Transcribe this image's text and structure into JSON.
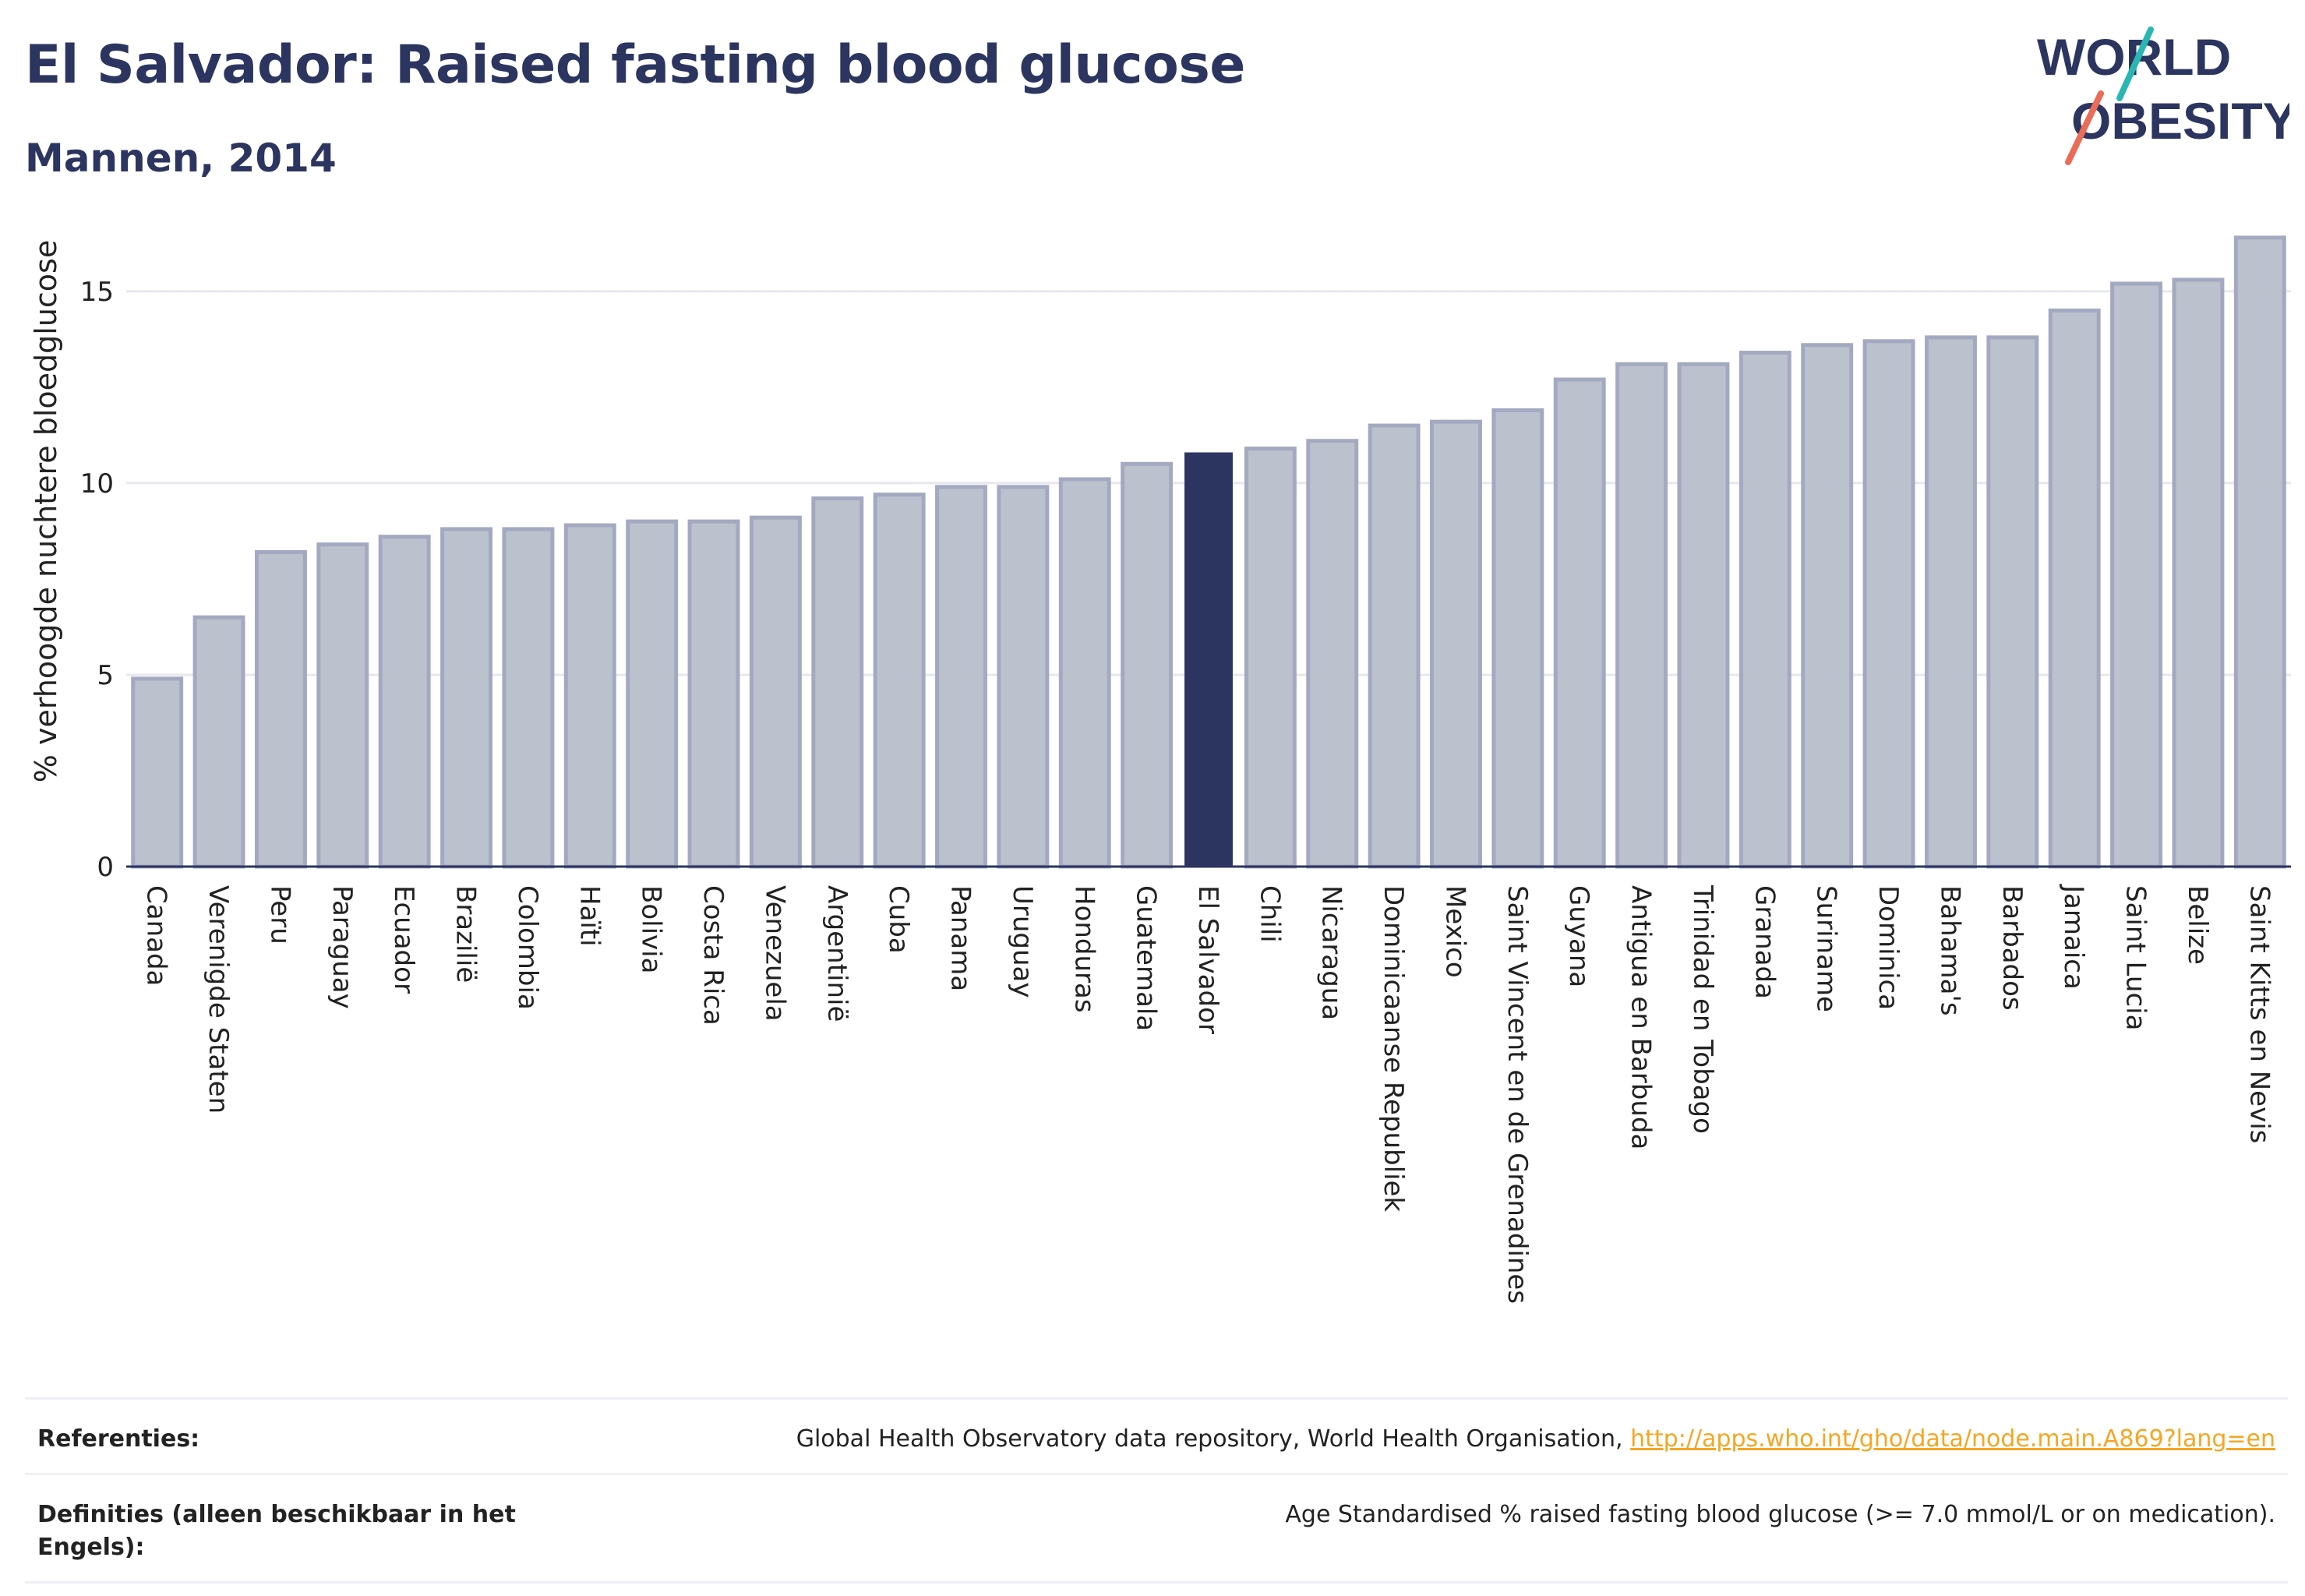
{
  "header": {
    "title": "El Salvador: Raised fasting blood glucose",
    "subtitle": "Mannen, 2014"
  },
  "logo": {
    "line1": "WORLD",
    "line2": "OBESITY"
  },
  "colors": {
    "bar": "#bcc1ce",
    "bar_border": "#a3a9c0",
    "highlight": "#2c3560",
    "grid": "#e6e8ee",
    "logo_teal": "#2ab7b3",
    "logo_coral": "#ea6c58",
    "link": "#f5a623"
  },
  "chart_data": {
    "type": "bar",
    "ylabel": "% verhoogde nuchtere bloedglucose",
    "ylim": [
      0,
      16.5
    ],
    "yticks": [
      0,
      5,
      10,
      15
    ],
    "grid": true,
    "highlight": "El Salvador",
    "categories": [
      "Canada",
      "Verenigde Staten",
      "Peru",
      "Paraguay",
      "Ecuador",
      "Brazilië",
      "Colombia",
      "Haïti",
      "Bolivia",
      "Costa Rica",
      "Venezuela",
      "Argentinië",
      "Cuba",
      "Panama",
      "Uruguay",
      "Honduras",
      "Guatemala",
      "El Salvador",
      "Chili",
      "Nicaragua",
      "Dominicaanse Republiek",
      "Mexico",
      "Saint Vincent en de Grenadines",
      "Guyana",
      "Antigua en Barbuda",
      "Trinidad en Tobago",
      "Granada",
      "Suriname",
      "Dominica",
      "Bahama's",
      "Barbados",
      "Jamaica",
      "Saint Lucia",
      "Belize",
      "Saint Kitts en Nevis"
    ],
    "values": [
      4.9,
      6.5,
      8.2,
      8.4,
      8.6,
      8.8,
      8.8,
      8.9,
      9.0,
      9.0,
      9.1,
      9.6,
      9.7,
      9.9,
      9.9,
      10.1,
      10.5,
      10.8,
      10.9,
      11.1,
      11.5,
      11.6,
      11.9,
      12.7,
      13.1,
      13.1,
      13.4,
      13.6,
      13.7,
      13.8,
      13.8,
      14.5,
      15.2,
      15.3,
      16.4
    ]
  },
  "footer": {
    "references_label": "Referenties:",
    "references_text": "Global Health Observatory data repository, World Health Organisation,",
    "references_link": "http://apps.who.int/gho/data/node.main.A869?lang=en",
    "definitions_label": "Definities (alleen beschikbaar in het Engels):",
    "definitions_text": "Age Standardised % raised fasting blood glucose (>= 7.0 mmol/L or on medication)."
  }
}
